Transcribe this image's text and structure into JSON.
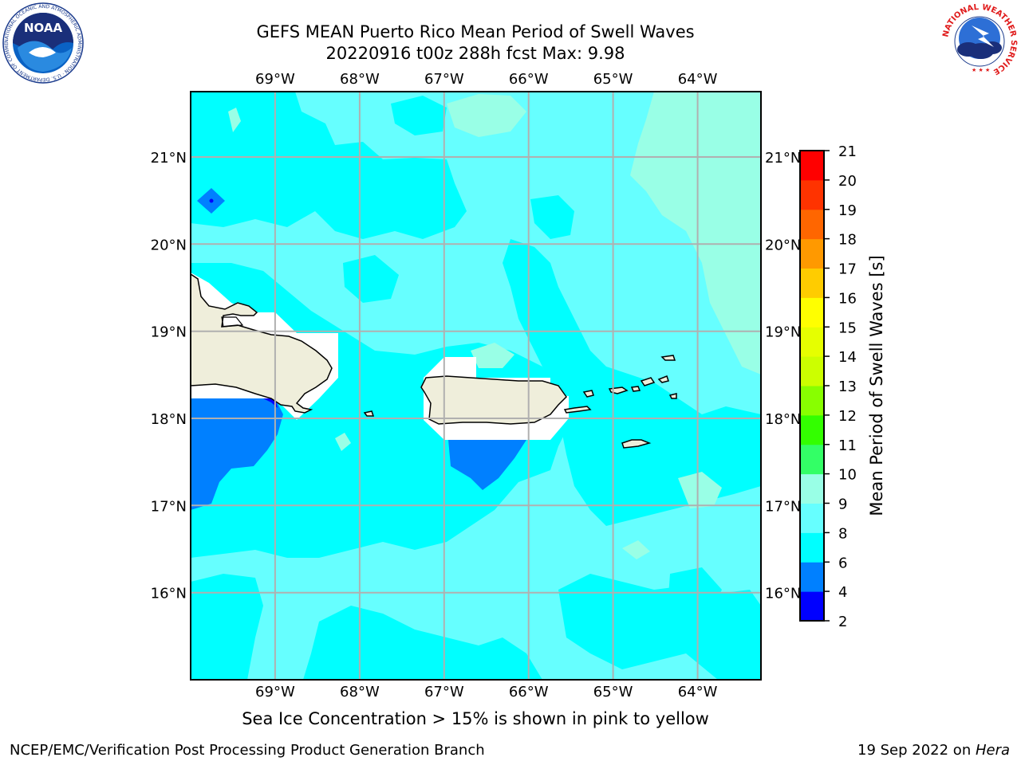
{
  "title": {
    "line1": "GEFS MEAN Puerto Rico Mean Period of Swell Waves",
    "line2": "20220916 t00z 288h fcst   Max: 9.98"
  },
  "map": {
    "lon_labels": [
      "69°W",
      "68°W",
      "67°W",
      "66°W",
      "65°W",
      "64°W"
    ],
    "lon_values": [
      -69,
      -68,
      -67,
      -66,
      -65,
      -64
    ],
    "lat_labels": [
      "21°N",
      "20°N",
      "19°N",
      "18°N",
      "17°N",
      "16°N"
    ],
    "lat_values": [
      21,
      20,
      19,
      18,
      17,
      16
    ],
    "lon_range": [
      -70.0,
      -63.25
    ],
    "lat_range": [
      15.0,
      21.75
    ],
    "grid": true
  },
  "colorbar": {
    "label": "Mean Period of Swell Waves [s]",
    "ticks": [
      "2",
      "4",
      "6",
      "8",
      "9",
      "10",
      "11",
      "12",
      "13",
      "14",
      "15",
      "16",
      "17",
      "18",
      "19",
      "20",
      "21"
    ],
    "colors": [
      "#0000ff",
      "#0080ff",
      "#00ffff",
      "#66ffff",
      "#99ffe6",
      "#33ff66",
      "#33ff00",
      "#88ff00",
      "#ccff00",
      "#e6ff00",
      "#ffff00",
      "#ffcc00",
      "#ff9900",
      "#ff6600",
      "#ff3300",
      "#ff0000"
    ]
  },
  "logos": {
    "noaa_text": "NOAA",
    "noaa_ring": "NATIONAL OCEANIC AND ATMOSPHERIC ADMINISTRATION · U.S. DEPARTMENT OF COMMERCE",
    "nws_ring": "NATIONAL WEATHER SERVICE"
  },
  "ice_note": "Sea Ice Concentration > 15% is shown in pink to yellow",
  "footer": {
    "left": "NCEP/EMC/Verification Post Processing Product Generation Branch",
    "date": "19 Sep 2022 on ",
    "host": "Hera"
  }
}
